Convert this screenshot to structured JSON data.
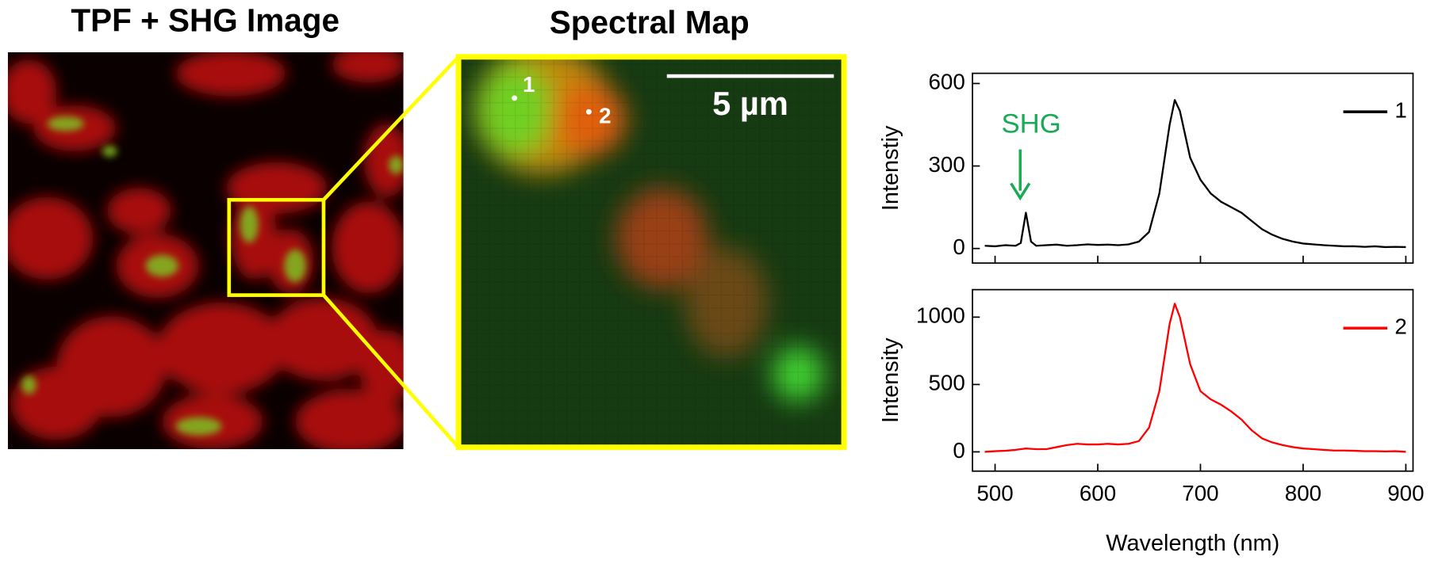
{
  "figure": {
    "left_title": "TPF + SHG Image",
    "middle_title": "Spectral Map",
    "scale_bar": "5 µm",
    "map_points": [
      "1",
      "2"
    ]
  },
  "chart_data": [
    {
      "type": "line",
      "y_label": "Intenstiy",
      "annotation": {
        "text": "SHG",
        "color": "#1aaa55"
      },
      "xlim": [
        478,
        907
      ],
      "xticks": [
        500,
        600,
        700,
        800,
        900
      ],
      "ylim": [
        -53,
        637
      ],
      "yticks": [
        0,
        300,
        600
      ],
      "legend": "upper right",
      "x": [
        490,
        500,
        510,
        520,
        525,
        530,
        535,
        540,
        550,
        560,
        570,
        580,
        590,
        600,
        610,
        620,
        630,
        640,
        650,
        660,
        670,
        675,
        680,
        690,
        700,
        710,
        720,
        730,
        740,
        750,
        760,
        770,
        780,
        790,
        800,
        810,
        820,
        830,
        840,
        850,
        860,
        870,
        880,
        890,
        900
      ],
      "series": [
        {
          "name": "1",
          "color": "#000000",
          "values": [
            10,
            8,
            12,
            10,
            20,
            130,
            25,
            10,
            12,
            14,
            10,
            12,
            15,
            13,
            14,
            12,
            15,
            25,
            60,
            200,
            450,
            540,
            500,
            330,
            250,
            200,
            170,
            150,
            130,
            100,
            70,
            50,
            35,
            25,
            18,
            15,
            12,
            10,
            8,
            8,
            6,
            8,
            5,
            6,
            5
          ]
        }
      ]
    },
    {
      "type": "line",
      "y_label": "Intensity",
      "x_label": "Wavelength (nm)",
      "xlim": [
        478,
        907
      ],
      "xticks": [
        500,
        600,
        700,
        800,
        900
      ],
      "ylim": [
        -143,
        1204
      ],
      "yticks": [
        0,
        500,
        1000
      ],
      "legend": "upper right",
      "x": [
        490,
        500,
        510,
        520,
        525,
        530,
        535,
        540,
        550,
        560,
        570,
        580,
        590,
        600,
        610,
        620,
        630,
        640,
        650,
        660,
        670,
        675,
        680,
        690,
        700,
        710,
        720,
        730,
        740,
        750,
        760,
        770,
        780,
        790,
        800,
        810,
        820,
        830,
        840,
        850,
        860,
        870,
        880,
        890,
        900
      ],
      "series": [
        {
          "name": "2",
          "color": "#ff0000",
          "values": [
            0,
            5,
            8,
            15,
            20,
            25,
            22,
            20,
            20,
            35,
            50,
            60,
            55,
            55,
            60,
            55,
            60,
            80,
            180,
            450,
            950,
            1100,
            1000,
            650,
            450,
            390,
            350,
            300,
            240,
            160,
            100,
            70,
            50,
            35,
            25,
            20,
            15,
            10,
            10,
            8,
            5,
            5,
            3,
            5,
            0
          ]
        }
      ]
    }
  ]
}
